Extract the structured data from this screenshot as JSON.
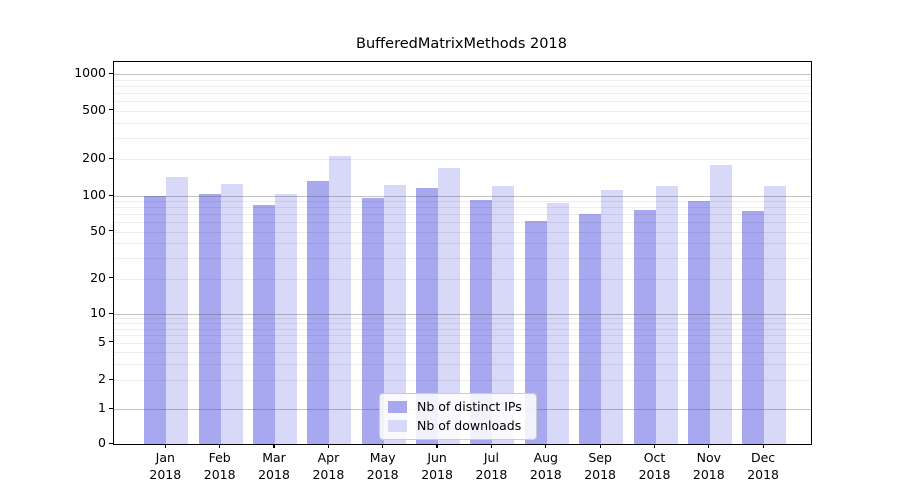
{
  "title": "BufferedMatrixMethods 2018",
  "chart_data": {
    "type": "bar",
    "title": "BufferedMatrixMethods 2018",
    "categories": [
      "Jan 2018",
      "Feb 2018",
      "Mar 2018",
      "Apr 2018",
      "May 2018",
      "Jun 2018",
      "Jul 2018",
      "Aug 2018",
      "Sep 2018",
      "Oct 2018",
      "Nov 2018",
      "Dec 2018"
    ],
    "months": [
      "Jan",
      "Feb",
      "Mar",
      "Apr",
      "May",
      "Jun",
      "Jul",
      "Aug",
      "Sep",
      "Oct",
      "Nov",
      "Dec"
    ],
    "year": "2018",
    "series": [
      {
        "name": "Nb of distinct IPs",
        "color": "#a8a8f0",
        "values": [
          100,
          104,
          84,
          133,
          96,
          116,
          92,
          61,
          71,
          76,
          91,
          75
        ]
      },
      {
        "name": "Nb of downloads",
        "color": "#d8d8f8",
        "values": [
          144,
          126,
          103,
          211,
          123,
          171,
          121,
          88,
          112,
          122,
          180,
          121
        ]
      }
    ],
    "yscale": "symlog",
    "yticks": [
      0,
      1,
      2,
      5,
      10,
      20,
      50,
      100,
      200,
      500,
      1000
    ],
    "ylim": [
      0,
      1400
    ],
    "grid": "horizontal, log minor + major decade lines",
    "legend_position": "lower center-left inside plot"
  },
  "colors": {
    "distinct_ips": "#a8a8f0",
    "downloads": "#d8d8f8",
    "grid_major": "#c2c2c2",
    "grid_minor": "#ededed",
    "axis": "#000000",
    "legend_border": "#cccccc"
  }
}
